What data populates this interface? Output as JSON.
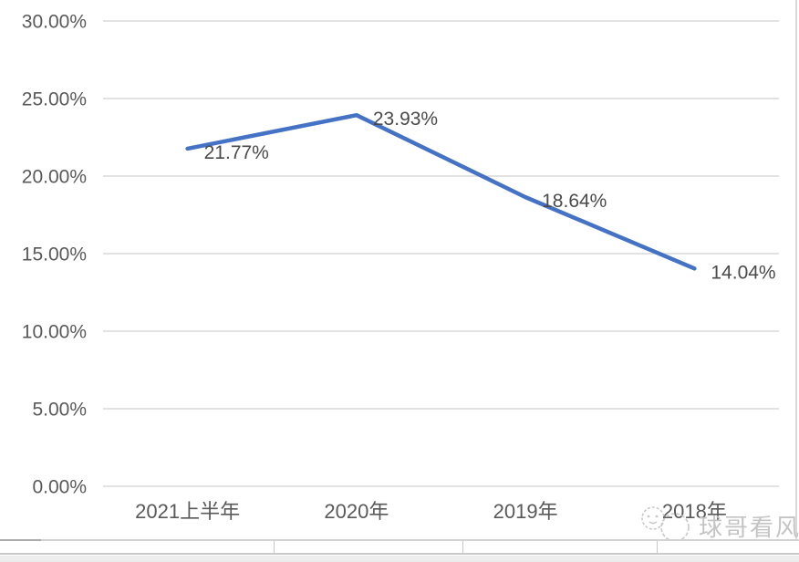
{
  "chart_data": {
    "type": "line",
    "title": "",
    "categories": [
      "2021上半年",
      "2020年",
      "2019年",
      "2018年"
    ],
    "series": [
      {
        "name": "",
        "values": [
          21.77,
          23.93,
          18.64,
          14.04
        ]
      }
    ],
    "value_labels": [
      "21.77%",
      "23.93%",
      "18.64%",
      "14.04%"
    ],
    "y_tick_labels": [
      "30.00%",
      "25.00%",
      "20.00%",
      "15.00%",
      "10.00%",
      "5.00%",
      "0.00%"
    ],
    "ylim": [
      0,
      30
    ],
    "y_step": 5,
    "grid": true,
    "legend_position": "none",
    "colors": {
      "line": "#4472c4",
      "gridline": "#d9d9d9",
      "axis_label": "#595959",
      "data_label": "#4a4a4a"
    }
  },
  "watermark": {
    "text": "球哥看风",
    "logo": "panda-face-logo",
    "color": "#c4c4c4"
  }
}
